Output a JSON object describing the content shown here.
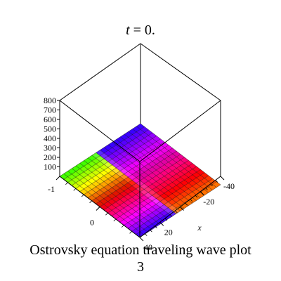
{
  "title": {
    "var": "t",
    "rest": " = 0."
  },
  "caption": {
    "line1": "Ostrovsky equation  traveling wave plot",
    "line2": "3"
  },
  "chart_data": {
    "type": "surface3d",
    "title": "t = 0.",
    "xlabel": "x",
    "ylabel": "",
    "zlabel": "",
    "xlim": [
      -40,
      40
    ],
    "ylim": [
      -1,
      1
    ],
    "zlim": [
      0,
      800
    ],
    "x_ticks": [
      -40,
      -20,
      0,
      20,
      40
    ],
    "x_tick_labels": [
      "-40",
      "-20",
      "",
      "20",
      "40"
    ],
    "y_ticks": [
      -1,
      0
    ],
    "y_tick_labels": [
      "-1",
      "0"
    ],
    "z_ticks": [
      100,
      200,
      300,
      400,
      500,
      600,
      700,
      800
    ],
    "z_tick_labels": [
      "100",
      "200",
      "300",
      "400",
      "500",
      "600",
      "700",
      "800"
    ],
    "surface": {
      "z_value": 0,
      "grid_lines": 20,
      "coloring": "hue by x and y"
    },
    "box": true
  }
}
